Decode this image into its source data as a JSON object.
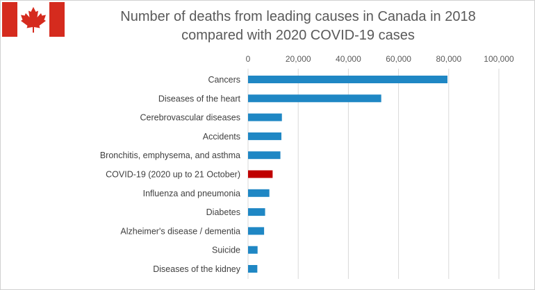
{
  "flag": {
    "icon": "canada-flag-icon",
    "red": "#d52b1e",
    "white": "#ffffff"
  },
  "colors": {
    "bar": "#1f87c4",
    "highlight": "#c00000",
    "grid": "#d9d9d9",
    "text": "#595959"
  },
  "chart_data": {
    "type": "bar",
    "orientation": "horizontal",
    "title": "Number of deaths from leading causes in Canada in 2018 compared with 2020 COVID-19 cases",
    "title_lines": [
      "Number of deaths from leading causes in Canada in 2018",
      "compared with 2020 COVID-19 cases"
    ],
    "xlabel": "",
    "ylabel": "",
    "xlim": [
      0,
      100000
    ],
    "xticks": [
      0,
      20000,
      40000,
      60000,
      80000,
      100000
    ],
    "xtick_labels": [
      "0",
      "20,000",
      "40,000",
      "60,000",
      "80,000",
      "100,000"
    ],
    "grid": true,
    "axis_position": "top",
    "categories": [
      "Cancers",
      "Diseases of the heart",
      "Cerebrovascular diseases",
      "Accidents",
      "Bronchitis, emphysema, and asthma",
      "COVID-19 (2020 up to 21 October)",
      "Influenza and pneumonia",
      "Diabetes",
      "Alzheimer's disease / dementia",
      "Suicide",
      "Diseases of the kidney"
    ],
    "values": [
      79500,
      53100,
      13500,
      13300,
      12900,
      9800,
      8500,
      6800,
      6400,
      3800,
      3700
    ],
    "highlight_index": 5
  }
}
